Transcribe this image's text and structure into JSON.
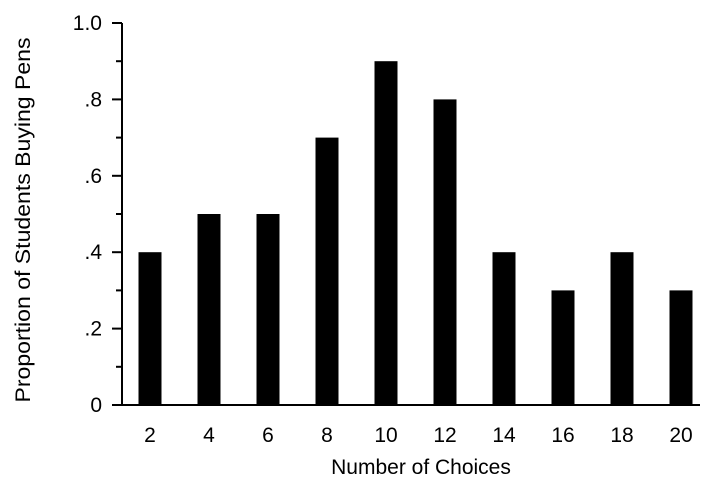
{
  "chart_data": {
    "type": "bar",
    "title": "",
    "xlabel": "Number of Choices",
    "ylabel": "Proportion of Students Buying Pens",
    "categories": [
      "2",
      "4",
      "6",
      "8",
      "10",
      "12",
      "14",
      "16",
      "18",
      "20"
    ],
    "values": [
      0.4,
      0.5,
      0.5,
      0.7,
      0.9,
      0.8,
      0.4,
      0.3,
      0.4,
      0.3
    ],
    "ylim": [
      0,
      1.0
    ],
    "y_major_ticks": [
      0,
      0.2,
      0.4,
      0.6,
      0.8,
      1.0
    ],
    "y_tick_labels": [
      "0",
      ".2",
      ".4",
      ".6",
      ".8",
      "1.0"
    ],
    "y_minor_ticks": [
      0.1,
      0.3,
      0.5,
      0.7,
      0.9
    ],
    "grid": false,
    "bar_color": "#000000"
  }
}
